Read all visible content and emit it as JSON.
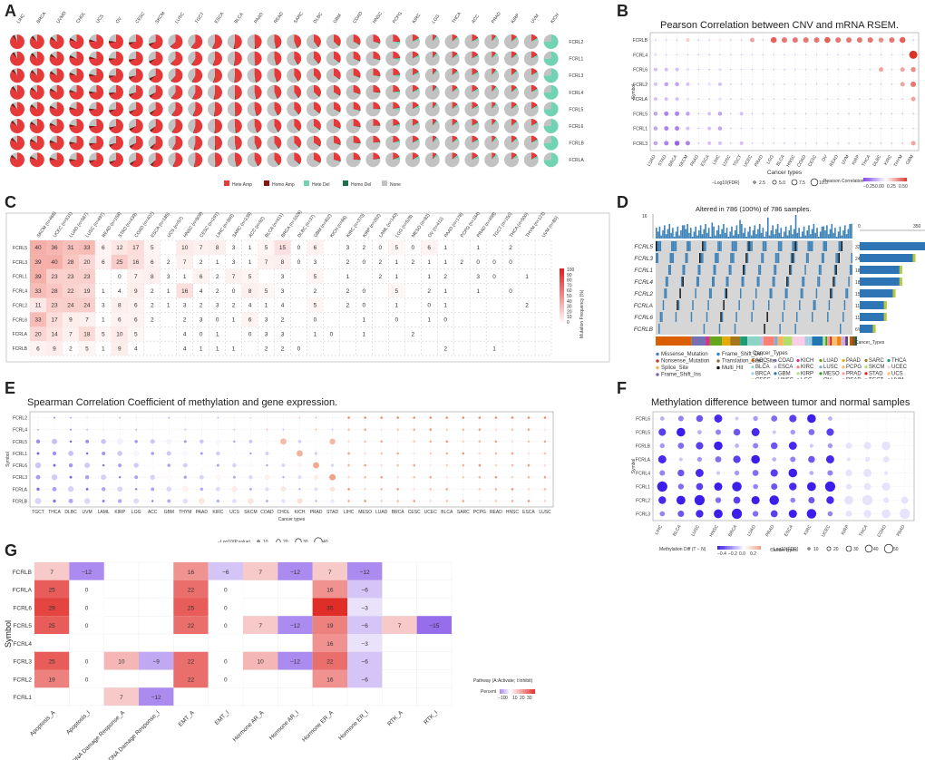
{
  "labels": {
    "A": "A",
    "B": "B",
    "C": "C",
    "D": "D",
    "E": "E",
    "F": "F",
    "G": "G"
  },
  "chart_data": [
    {
      "panel": "A",
      "type": "pie",
      "cancers": [
        "LIHC",
        "BRCA",
        "UVMD",
        "CHOL",
        "UCS",
        "OV",
        "CESC",
        "SKCM",
        "LUSC",
        "TGCT",
        "ESCA",
        "BLCA",
        "PAAD",
        "READ",
        "SARC",
        "DLBC",
        "GBM",
        "COAD",
        "HNSC",
        "PCPG",
        "KIRC",
        "LGG",
        "THCA",
        "ACC",
        "PRAD",
        "KIRP",
        "UVM",
        "KICH"
      ],
      "genes": [
        "FCRL2",
        "FCRL1",
        "FCRL3",
        "FCRL4",
        "FCRL5",
        "FCRL6",
        "FCRLB",
        "FCRLA"
      ],
      "legend": [
        "Hete Amp",
        "Homo Amp",
        "Hete Del",
        "Homo Del",
        "None"
      ],
      "colors": [
        "#e63a3a",
        "#8a1414",
        "#6fd3b4",
        "#1f6e4e",
        "#c2c2c2"
      ]
    },
    {
      "panel": "B",
      "type": "scatter",
      "title": "Pearson Correlation between CNV and mRNA RSEM.",
      "ylabel": "Symbol",
      "xlabel": "Cancer types",
      "genes": [
        "FCRLB",
        "FCRL4",
        "FCRL6",
        "FCRL2",
        "FCRLA",
        "FCRL5",
        "FCRL1",
        "FCRL3"
      ],
      "cancers": [
        "LUAD",
        "STAD",
        "BRCA",
        "SKCM",
        "PAAD",
        "ESCA",
        "LIHC",
        "LUSC",
        "TGCT",
        "UCEC",
        "PRAD",
        "LGG",
        "BLCA",
        "HNSC",
        "COAD",
        "CESC",
        "OV",
        "READ",
        "UVM",
        "KIRP",
        "THCA",
        "DLBC",
        "KIRC",
        "THYM",
        "GBM"
      ],
      "size_legend_title": "−Log10(FDR)",
      "size_legend": [
        "2.5",
        "5.0",
        "7.5",
        "10.0"
      ],
      "color_legend_title": "Pearson Correlation",
      "color_legend": [
        "−0.25",
        "0.00",
        "0.25",
        "0.50"
      ],
      "matrix": [
        [
          0,
          0,
          0,
          0.1,
          0,
          0,
          0.05,
          0,
          0,
          0.2,
          0,
          0.35,
          0.3,
          0.3,
          0.3,
          0.3,
          0.35,
          0.3,
          0.3,
          0.3,
          0.3,
          0.25,
          0.3,
          0.35,
          0
        ],
        [
          -0.05,
          0,
          0,
          0,
          0,
          0,
          0,
          0,
          0,
          0,
          0,
          0,
          0,
          0,
          0,
          0,
          0,
          0,
          0,
          0,
          0,
          0,
          0,
          0,
          0.6
        ],
        [
          -0.1,
          -0.1,
          -0.1,
          -0.05,
          0,
          0,
          -0.05,
          0,
          0,
          0,
          0,
          0,
          0,
          0,
          0,
          0,
          0,
          0,
          0,
          0,
          0,
          0.2,
          0,
          0.2,
          0.25
        ],
        [
          -0.1,
          -0.15,
          -0.15,
          -0.1,
          0,
          -0.05,
          -0.1,
          0,
          0,
          0,
          0,
          0,
          0,
          0,
          0,
          0,
          0,
          0,
          0,
          0,
          0,
          0,
          0,
          0.2,
          0.3
        ],
        [
          -0.1,
          -0.1,
          -0.1,
          -0.05,
          0,
          0,
          -0.05,
          0,
          0,
          0,
          0,
          0,
          0,
          0,
          0,
          0,
          0,
          0,
          0,
          0,
          0,
          0,
          0,
          0,
          0.2
        ],
        [
          -0.15,
          -0.2,
          -0.2,
          -0.15,
          0,
          -0.1,
          -0.15,
          0,
          -0.1,
          0,
          0,
          0,
          0,
          0,
          0,
          0,
          0,
          0,
          0,
          0,
          0,
          0,
          0,
          0,
          0
        ],
        [
          -0.15,
          -0.2,
          -0.2,
          -0.1,
          0,
          -0.1,
          -0.15,
          0,
          0,
          0,
          0,
          0,
          0,
          0,
          0,
          0,
          0,
          0,
          0,
          0,
          0,
          0,
          0,
          0,
          0
        ],
        [
          -0.15,
          -0.2,
          -0.25,
          -0.2,
          0,
          -0.1,
          -0.1,
          0,
          -0.1,
          0,
          0,
          0,
          0,
          0,
          0,
          0,
          0,
          0,
          0,
          0,
          0,
          0,
          0,
          0,
          0.2
        ]
      ]
    },
    {
      "panel": "C",
      "type": "heatmap",
      "ylabel": "",
      "xlabel": "",
      "cancers": [
        "SKCM (n=468)",
        "UCEC (n=531)",
        "LUAD (n=567)",
        "LUSC (n=497)",
        "READ (n=158)",
        "STAD (n=439)",
        "COAD (n=407)",
        "ESCA (n=185)",
        "UCS (n=57)",
        "HNSC (n=509)",
        "CESC (n=291)",
        "LIHC (n=360)",
        "SARC (n=238)",
        "ACC (n=92)",
        "BLCA (n=411)",
        "BRCA (n=1026)",
        "DLBC (n=37)",
        "GBM (n=402)",
        "KICH (n=66)",
        "KIRC (n=370)",
        "KIRP (n=282)",
        "LAML (n=140)",
        "LGG (n=528)",
        "MESO (n=82)",
        "OV (n=412)",
        "PAAD (n=178)",
        "PCPG (n=184)",
        "PRAD (n=498)",
        "TGCT (n=150)",
        "THCA (n=500)",
        "THYM (n=123)",
        "UVM (n=80)"
      ],
      "genes": [
        "FCRL5",
        "FCRL3",
        "FCRL1",
        "FCRL4",
        "FCRL2",
        "FCRL6",
        "FCRLA",
        "FCRLB"
      ],
      "values": [
        [
          "40",
          "36",
          "31",
          "33",
          "6",
          "12",
          "17",
          "5",
          "",
          "10",
          "7",
          "8",
          "3",
          "1",
          "5",
          "15",
          "0",
          "6",
          "",
          "3",
          "2",
          "0",
          "5",
          "0",
          "6",
          "1",
          "",
          "1",
          "",
          "2",
          "",
          ""
        ],
        [
          "39",
          "40",
          "28",
          "20",
          "6",
          "25",
          "16",
          "6",
          "2",
          "7",
          "2",
          "1",
          "3",
          "1",
          "7",
          "8",
          "0",
          "3",
          "",
          "2",
          "0",
          "2",
          "1",
          "2",
          "1",
          "1",
          "2",
          "0",
          "0",
          "0",
          "",
          ""
        ],
        [
          "39",
          "23",
          "23",
          "23",
          "",
          "0",
          "7",
          "8",
          "3",
          "1",
          "6",
          "2",
          "7",
          "5",
          "",
          "3",
          "",
          "5",
          "",
          "1",
          "",
          "2",
          "1",
          "",
          "1",
          "2",
          "",
          "3",
          "0",
          "",
          "1",
          ""
        ],
        [
          "33",
          "28",
          "22",
          "19",
          "1",
          "4",
          "9",
          "2",
          "1",
          "16",
          "4",
          "2",
          "0",
          "8",
          "5",
          "3",
          "",
          "2",
          "",
          "2",
          "0",
          "",
          "5",
          "",
          "2",
          "1",
          "",
          "1",
          "",
          "0",
          "",
          ""
        ],
        [
          "11",
          "23",
          "24",
          "24",
          "3",
          "8",
          "6",
          "2",
          "1",
          "3",
          "2",
          "3",
          "2",
          "4",
          "1",
          "4",
          "",
          "5",
          "",
          "2",
          "0",
          "",
          "1",
          "",
          "0",
          "1",
          "",
          "",
          "",
          "",
          "2",
          ""
        ],
        [
          "33",
          "17",
          "9",
          "7",
          "1",
          "6",
          "6",
          "2",
          "",
          "2",
          "3",
          "0",
          "1",
          "6",
          "3",
          "2",
          "",
          "0",
          "",
          "",
          "1",
          "",
          "0",
          "",
          "1",
          "0",
          "",
          "",
          "",
          "",
          "",
          ""
        ],
        [
          "20",
          "14",
          "7",
          "18",
          "5",
          "10",
          "5",
          "",
          "",
          "4",
          "0",
          "1",
          "",
          "0",
          "3",
          "3",
          "",
          "1",
          "0",
          "",
          "1",
          "",
          "",
          "2",
          "",
          "",
          "",
          "",
          "",
          "",
          "",
          ""
        ],
        [
          "6",
          "9",
          "2",
          "5",
          "1",
          "9",
          "4",
          "",
          "",
          "4",
          "1",
          "1",
          "1",
          "",
          "2",
          "2",
          "0",
          "",
          "",
          "",
          "",
          "",
          "",
          "",
          "",
          "2",
          "",
          "",
          "1",
          "",
          "",
          ""
        ]
      ],
      "legend_title": "Mutation Frequency (%)",
      "legend_ticks": [
        "100",
        "90",
        "80",
        "70",
        "60",
        "50",
        "40",
        "30",
        "20",
        "10",
        "0"
      ]
    },
    {
      "panel": "D",
      "type": "bar",
      "title": "Altered in 786 (100%) of 786 samples.",
      "top_axis_max": "16",
      "right_axis": [
        "0",
        "350"
      ],
      "genes": [
        "FCRL5",
        "FCRL3",
        "FCRL1",
        "FCRL4",
        "FCRL2",
        "FCRLA",
        "FCRL6",
        "FCRLB"
      ],
      "percents": [
        "32%",
        "24%",
        "18%",
        "18%",
        "15%",
        "11%",
        "11%",
        "6%"
      ],
      "values": [
        32,
        24,
        18,
        18,
        15,
        11,
        11,
        6
      ],
      "variant_legend": [
        "Missense_Mutation",
        "Nonsense_Mutation",
        "Splice_Site",
        "Frame_Shift_Ins",
        "Frame_Shift_Del",
        "Translation_Start_Site",
        "Multi_Hit"
      ],
      "variant_colors": [
        "#3d82b8",
        "#c0392b",
        "#e8b84a",
        "#7b5ea7",
        "#2e86c1",
        "#8e6c3a",
        "#111111"
      ],
      "cancer_legend_title": "Cancer_Types",
      "cancer_legend": [
        "ACC",
        "COAD",
        "KICH",
        "LUAD",
        "PAAD",
        "SARC",
        "THCA",
        "BLCA",
        "ESCA",
        "KIRC",
        "LUSC",
        "PCPG",
        "SKCM",
        "UCEC",
        "BRCA",
        "GBM",
        "KIRP",
        "MESO",
        "PRAD",
        "STAD",
        "UCS",
        "CESC",
        "HNSC",
        "LGG",
        "OV",
        "READ",
        "TGCT",
        "UVM"
      ],
      "cancer_colors": [
        "#d95f02",
        "#7570b3",
        "#e7298a",
        "#66a61e",
        "#e6ab02",
        "#a6761d",
        "#1b9e77",
        "#8dd3c7",
        "#bebada",
        "#fb8072",
        "#80b1d3",
        "#fdb462",
        "#b3de69",
        "#fccde5",
        "#a6cee3",
        "#1f78b4",
        "#b2df8a",
        "#33a02c",
        "#fb9a99",
        "#e31a1c",
        "#fdbf6f",
        "#ff7f00",
        "#cab2d6",
        "#6a3d9a",
        "#ffff99",
        "#b15928",
        "#8c510a",
        "#01665e"
      ]
    },
    {
      "panel": "E",
      "type": "scatter",
      "title": "Spearman Correlation Coefficient of methylation and gene expression.",
      "ylabel": "Symbol",
      "xlabel": "Cancer types",
      "genes": [
        "FCRL2",
        "FCRL4",
        "FCRL5",
        "FCRL1",
        "FCRL6",
        "FCRL3",
        "FCRLA",
        "FCRLB"
      ],
      "cancers": [
        "TGCT",
        "THCA",
        "DLBC",
        "UVM",
        "LAML",
        "KIRP",
        "LGG",
        "ACC",
        "GBM",
        "THYM",
        "PAAD",
        "KIRC",
        "UCS",
        "SKCM",
        "COAD",
        "CHOL",
        "KICH",
        "PRAD",
        "STAD",
        "LIHC",
        "MESO",
        "LUAD",
        "BRCA",
        "CESC",
        "UCEC",
        "BLCA",
        "SARC",
        "PCPG",
        "READ",
        "HNSC",
        "ESCA",
        "LUSC"
      ],
      "size_legend_title": "−Log10(P.value)",
      "size_legend": [
        "10",
        "20",
        "30",
        "40"
      ],
      "color_legend_title": "Spearman Correlation Coefficient",
      "color_legend": [
        "−0.75",
        "−0.50",
        "−0.25",
        "0.00",
        "0.25"
      ]
    },
    {
      "panel": "F",
      "type": "scatter",
      "title": "Methylation difference between tumor and normal samples",
      "ylabel": "Symbol",
      "xlabel": "Cancer types",
      "genes": [
        "FCRL6",
        "FCRL5",
        "FCRLB",
        "FCRLA",
        "FCRL4",
        "FCRL1",
        "FCRL2",
        "FCRL3"
      ],
      "cancers": [
        "LIHC",
        "BLCA",
        "LUSC",
        "HNSC",
        "BRCA",
        "LUAD",
        "PRAD",
        "ESCA",
        "KIRC",
        "UCEC",
        "KIRP",
        "THCA",
        "COAD",
        "PAAD"
      ],
      "color_legend_title": "Methylation Diff (T − N)",
      "color_legend": [
        "−0.4",
        "−0.2",
        "0.0",
        "0.2"
      ],
      "size_legend_title": "−Log10(FDR)",
      "size_legend": [
        "10",
        "20",
        "30",
        "40",
        "50"
      ]
    },
    {
      "panel": "G",
      "type": "heatmap",
      "ylabel": "Symbol",
      "pathways": [
        "Apoptosis_A",
        "Apoptosis_I",
        "DNA Damage Response_A",
        "DNA Damage Response_I",
        "EMT_A",
        "EMT_I",
        "Hormone AR_A",
        "Hormone AR_I",
        "Hormone ER_A",
        "Hormone ER_I",
        "RTK_A",
        "RTK_I"
      ],
      "genes": [
        "FCRLB",
        "FCRLA",
        "FCRL6",
        "FCRL5",
        "FCRL4",
        "FCRL3",
        "FCRL2",
        "FCRL1"
      ],
      "values": [
        [
          "7",
          "−12",
          "",
          "",
          "16",
          "−6",
          "7",
          "−12",
          "7",
          "−12",
          "",
          ""
        ],
        [
          "25",
          "0",
          "",
          "",
          "22",
          "0",
          "",
          "",
          "16",
          "−6",
          "",
          ""
        ],
        [
          "29",
          "0",
          "",
          "",
          "25",
          "0",
          "",
          "",
          "35",
          "−3",
          "",
          ""
        ],
        [
          "25",
          "0",
          "",
          "",
          "22",
          "0",
          "7",
          "−12",
          "19",
          "−6",
          "7",
          "−15"
        ],
        [
          "",
          "",
          "",
          "",
          "",
          "",
          "",
          "",
          "16",
          "−3",
          "",
          ""
        ],
        [
          "25",
          "0",
          "10",
          "−9",
          "22",
          "0",
          "10",
          "−12",
          "22",
          "−6",
          "",
          ""
        ],
        [
          "19",
          "0",
          "",
          "",
          "22",
          "0",
          "",
          "",
          "16",
          "−6",
          "",
          ""
        ],
        [
          "",
          "",
          "7",
          "−12",
          "",
          "",
          "",
          "",
          "",
          "",
          "",
          ""
        ]
      ],
      "legend_title": "Pathway (A:Activate; I:Inhibit)",
      "legend_sub": "Percent",
      "legend_ticks": [
        "−10",
        "0",
        "10",
        "20",
        "30"
      ]
    }
  ]
}
